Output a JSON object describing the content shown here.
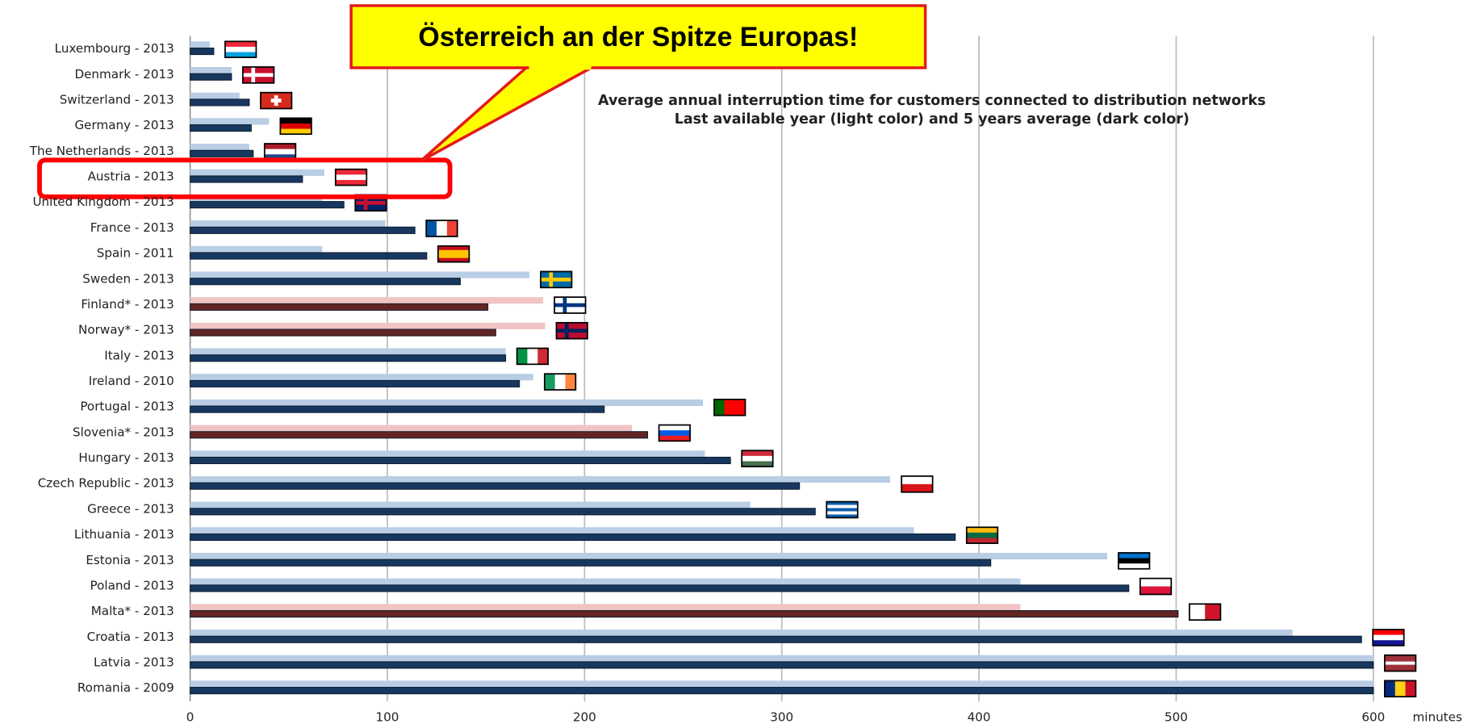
{
  "chart_data": {
    "type": "hbar",
    "title": "Average annual interruption time  for customers  connected to distribution networks",
    "subtitle": "Last available year (light color) and 5 years average  (dark color)",
    "annotation": "Österreich an der Spitze Europas!",
    "xlabel": "minutes",
    "categories": [
      "Luxembourg - 2013",
      "Denmark - 2013",
      "Switzerland - 2013",
      "Germany - 2013",
      "The Netherlands - 2013",
      "Austria - 2013",
      "United Kingdom - 2013",
      "France - 2013",
      "Spain - 2011",
      "Sweden - 2013",
      "Finland* - 2013",
      "Norway* - 2013",
      "Italy - 2013",
      "Ireland - 2010",
      "Portugal - 2013",
      "Slovenia* - 2013",
      "Hungary - 2013",
      "Czech Republic - 2013",
      "Greece - 2013",
      "Lithuania - 2013",
      "Estonia - 2013",
      "Poland - 2013",
      "Malta* - 2013",
      "Croatia - 2013",
      "Latvia - 2013",
      "Romania - 2009"
    ],
    "series": [
      {
        "color": "#b9cde5",
        "colors": [
          "#b9cde5",
          "#b9cde5",
          "#b9cde5",
          "#b9cde5",
          "#b9cde5",
          "#b9cde5",
          "#b9cde5",
          "#b9cde5",
          "#b9cde5",
          "#b9cde5",
          "#f2c3c3",
          "#f2c3c3",
          "#b9cde5",
          "#b9cde5",
          "#b9cde5",
          "#f2c3c3",
          "#b9cde5",
          "#b9cde5",
          "#b9cde5",
          "#b9cde5",
          "#b9cde5",
          "#b9cde5",
          "#f2c3c3",
          "#b9cde5",
          "#b9cde5",
          "#b9cde5"
        ],
        "values": [
          10,
          21,
          25,
          40,
          30,
          68,
          67,
          99,
          67,
          172,
          179,
          180,
          160,
          174,
          260,
          224,
          261,
          355,
          284,
          367,
          465,
          421,
          421,
          559,
          600,
          600
        ]
      },
      {
        "color": "#17375e",
        "colors": [
          "#17375e",
          "#17375e",
          "#17375e",
          "#17375e",
          "#17375e",
          "#17375e",
          "#17375e",
          "#17375e",
          "#17375e",
          "#17375e",
          "#632523",
          "#632523",
          "#17375e",
          "#17375e",
          "#17375e",
          "#632523",
          "#17375e",
          "#17375e",
          "#17375e",
          "#17375e",
          "#17375e",
          "#17375e",
          "#632523",
          "#17375e",
          "#17375e",
          "#17375e"
        ],
        "values": [
          12,
          21,
          30,
          31,
          32,
          57,
          78,
          114,
          120,
          137,
          151,
          155,
          160,
          167,
          210,
          232,
          274,
          309,
          317,
          388,
          406,
          476,
          501,
          594,
          600,
          600
        ]
      }
    ],
    "xlim": [
      0,
      600
    ],
    "xticks": [
      0,
      100,
      200,
      300,
      400,
      500,
      600
    ],
    "grid": true
  }
}
